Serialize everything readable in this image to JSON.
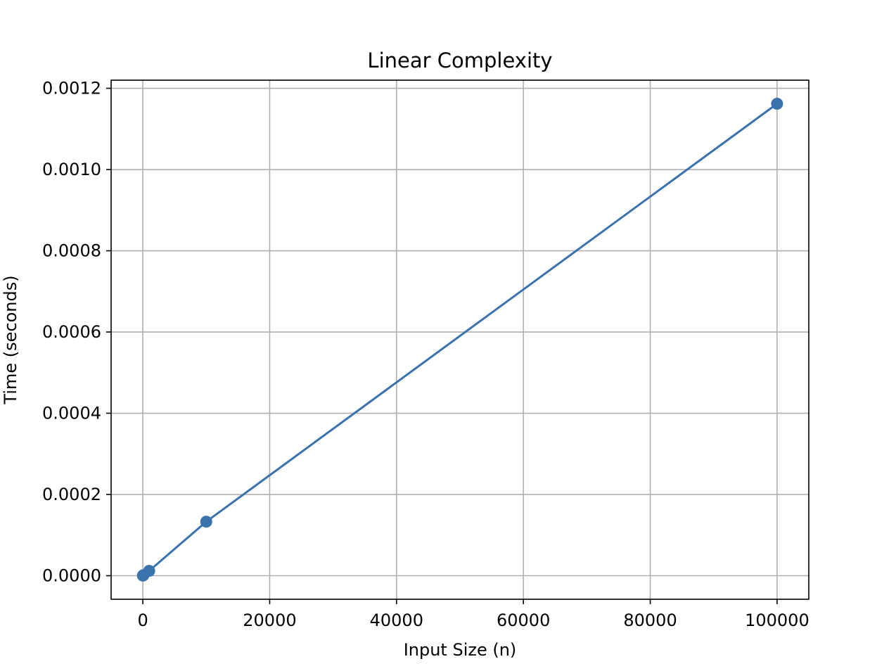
{
  "chart_data": {
    "type": "line",
    "title": "Linear Complexity",
    "xlabel": "Input Size (n)",
    "ylabel": "Time (seconds)",
    "x": [
      10,
      100,
      1000,
      10000,
      100000
    ],
    "series": [
      {
        "values": [
          2e-07,
          1.3e-06,
          1.2e-05,
          0.000133,
          0.001162
        ]
      }
    ],
    "xlim": [
      -5000,
      105000
    ],
    "ylim": [
      -5.8e-05,
      0.00122
    ],
    "xticks": [
      0,
      20000,
      40000,
      60000,
      80000,
      100000
    ],
    "xtick_labels": [
      "0",
      "20000",
      "40000",
      "60000",
      "80000",
      "100000"
    ],
    "yticks": [
      0,
      0.0002,
      0.0004,
      0.0006,
      0.0008,
      0.001,
      0.0012
    ],
    "ytick_labels": [
      "0.0000",
      "0.0002",
      "0.0004",
      "0.0006",
      "0.0008",
      "0.0010",
      "0.0012"
    ],
    "grid": true,
    "markers": true,
    "line_color": "#3a72ad",
    "grid_color": "#b0b0b0"
  }
}
